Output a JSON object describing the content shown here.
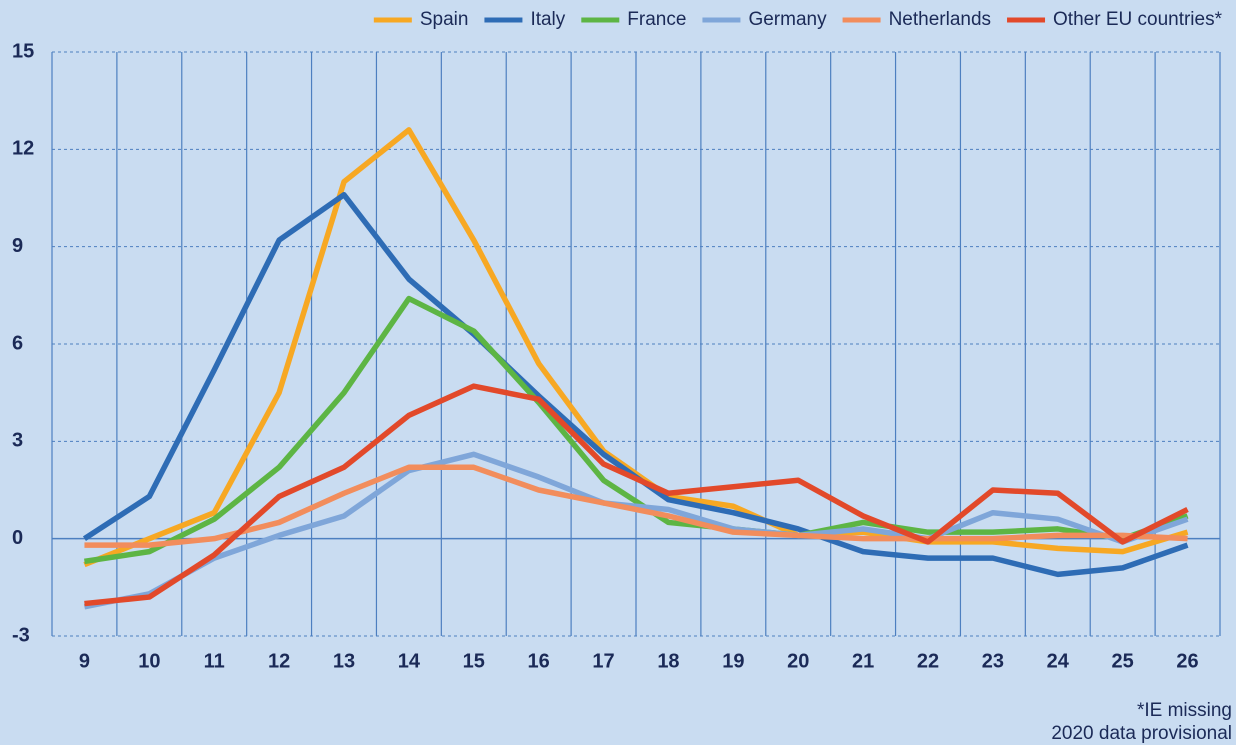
{
  "chart_data": {
    "type": "line",
    "categories": [
      "9",
      "10",
      "11",
      "12",
      "13",
      "14",
      "15",
      "16",
      "17",
      "18",
      "19",
      "20",
      "21",
      "22",
      "23",
      "24",
      "25",
      "26"
    ],
    "series": [
      {
        "name": "Spain",
        "color": "#f7a823",
        "values": [
          -0.8,
          0.0,
          0.8,
          4.5,
          11.0,
          12.6,
          9.2,
          5.4,
          2.7,
          1.3,
          1.0,
          0.1,
          0.2,
          -0.1,
          -0.1,
          -0.3,
          -0.4,
          0.2
        ]
      },
      {
        "name": "Italy",
        "color": "#2e6cb5",
        "values": [
          0.0,
          1.3,
          5.2,
          9.2,
          10.6,
          8.0,
          6.3,
          4.4,
          2.6,
          1.2,
          0.8,
          0.3,
          -0.4,
          -0.6,
          -0.6,
          -1.1,
          -0.9,
          -0.2
        ]
      },
      {
        "name": "France",
        "color": "#5db544",
        "values": [
          -0.7,
          -0.4,
          0.6,
          2.2,
          4.5,
          7.4,
          6.4,
          4.2,
          1.8,
          0.5,
          0.3,
          0.1,
          0.5,
          0.2,
          0.2,
          0.3,
          0.0,
          0.7
        ]
      },
      {
        "name": "Germany",
        "color": "#7fa6d9",
        "values": [
          -2.1,
          -1.7,
          -0.6,
          0.1,
          0.7,
          2.1,
          2.6,
          1.9,
          1.1,
          0.9,
          0.3,
          0.1,
          0.3,
          0.0,
          0.8,
          0.6,
          -0.1,
          0.6
        ]
      },
      {
        "name": "Netherlands",
        "color": "#f28d5c",
        "values": [
          -0.2,
          -0.2,
          0.0,
          0.5,
          1.4,
          2.2,
          2.2,
          1.5,
          1.1,
          0.7,
          0.2,
          0.1,
          0.0,
          0.0,
          0.0,
          0.1,
          0.1,
          0.0
        ]
      },
      {
        "name": "Other EU countries*",
        "color": "#e2492a",
        "values": [
          -2.0,
          -1.8,
          -0.5,
          1.3,
          2.2,
          3.8,
          4.7,
          4.3,
          2.3,
          1.4,
          1.6,
          1.8,
          0.7,
          -0.1,
          1.5,
          1.4,
          -0.1,
          0.9
        ]
      }
    ],
    "ylim": [
      -3,
      15
    ],
    "yticks": [
      -3,
      0,
      3,
      6,
      9,
      12,
      15
    ],
    "grid": true,
    "legend": "top-right",
    "annotations": [
      "*IE missing",
      "2020 data provisional"
    ]
  }
}
